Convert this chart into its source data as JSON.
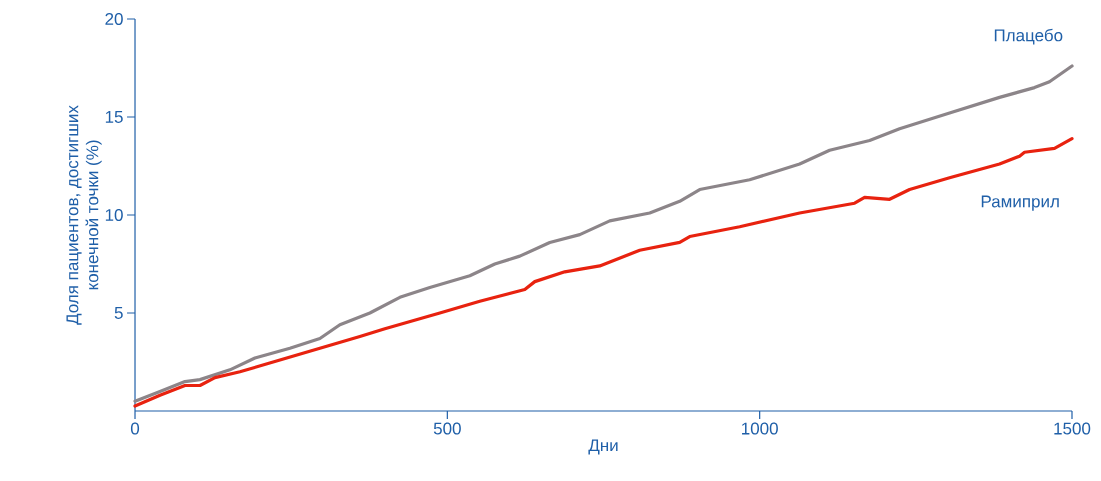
{
  "chart_data": {
    "type": "line",
    "xlabel": "Дни",
    "ylabel": "Доля пациентов, достигших\nконечной точки (%)",
    "xlim": [
      0,
      1500
    ],
    "ylim": [
      0,
      20
    ],
    "xticks": [
      0,
      500,
      1000,
      1500
    ],
    "yticks": [
      5,
      10,
      15,
      20
    ],
    "grid": false,
    "legend": false,
    "marker": "none",
    "line_style": "solid",
    "series": [
      {
        "name": "Плацебо",
        "color": "#8c8589",
        "x": [
          0,
          40,
          80,
          104,
          152,
          192,
          248,
          296,
          328,
          376,
          424,
          472,
          536,
          576,
          616,
          664,
          712,
          760,
          824,
          872,
          904,
          984,
          1064,
          1112,
          1176,
          1224,
          1304,
          1384,
          1440,
          1464,
          1500
        ],
        "values": [
          0.5,
          1.0,
          1.5,
          1.6,
          2.1,
          2.7,
          3.2,
          3.7,
          4.4,
          5.0,
          5.8,
          6.3,
          6.9,
          7.5,
          7.9,
          8.6,
          9.0,
          9.7,
          10.1,
          10.7,
          11.3,
          11.8,
          12.6,
          13.3,
          13.8,
          14.4,
          15.2,
          16.0,
          16.5,
          16.8,
          17.6
        ]
      },
      {
        "name": "Рамиприл",
        "color": "#e8220f",
        "x": [
          0,
          40,
          80,
          104,
          128,
          168,
          232,
          296,
          360,
          400,
          488,
          552,
          624,
          640,
          688,
          744,
          808,
          872,
          888,
          968,
          1064,
          1152,
          1168,
          1208,
          1240,
          1304,
          1384,
          1416,
          1424,
          1472,
          1500
        ],
        "values": [
          0.25,
          0.8,
          1.3,
          1.3,
          1.7,
          2.0,
          2.6,
          3.2,
          3.8,
          4.2,
          5.0,
          5.6,
          6.2,
          6.6,
          7.1,
          7.4,
          8.2,
          8.6,
          8.9,
          9.4,
          10.1,
          10.6,
          10.9,
          10.8,
          11.3,
          11.9,
          12.6,
          13.0,
          13.2,
          13.4,
          13.9
        ]
      }
    ]
  }
}
